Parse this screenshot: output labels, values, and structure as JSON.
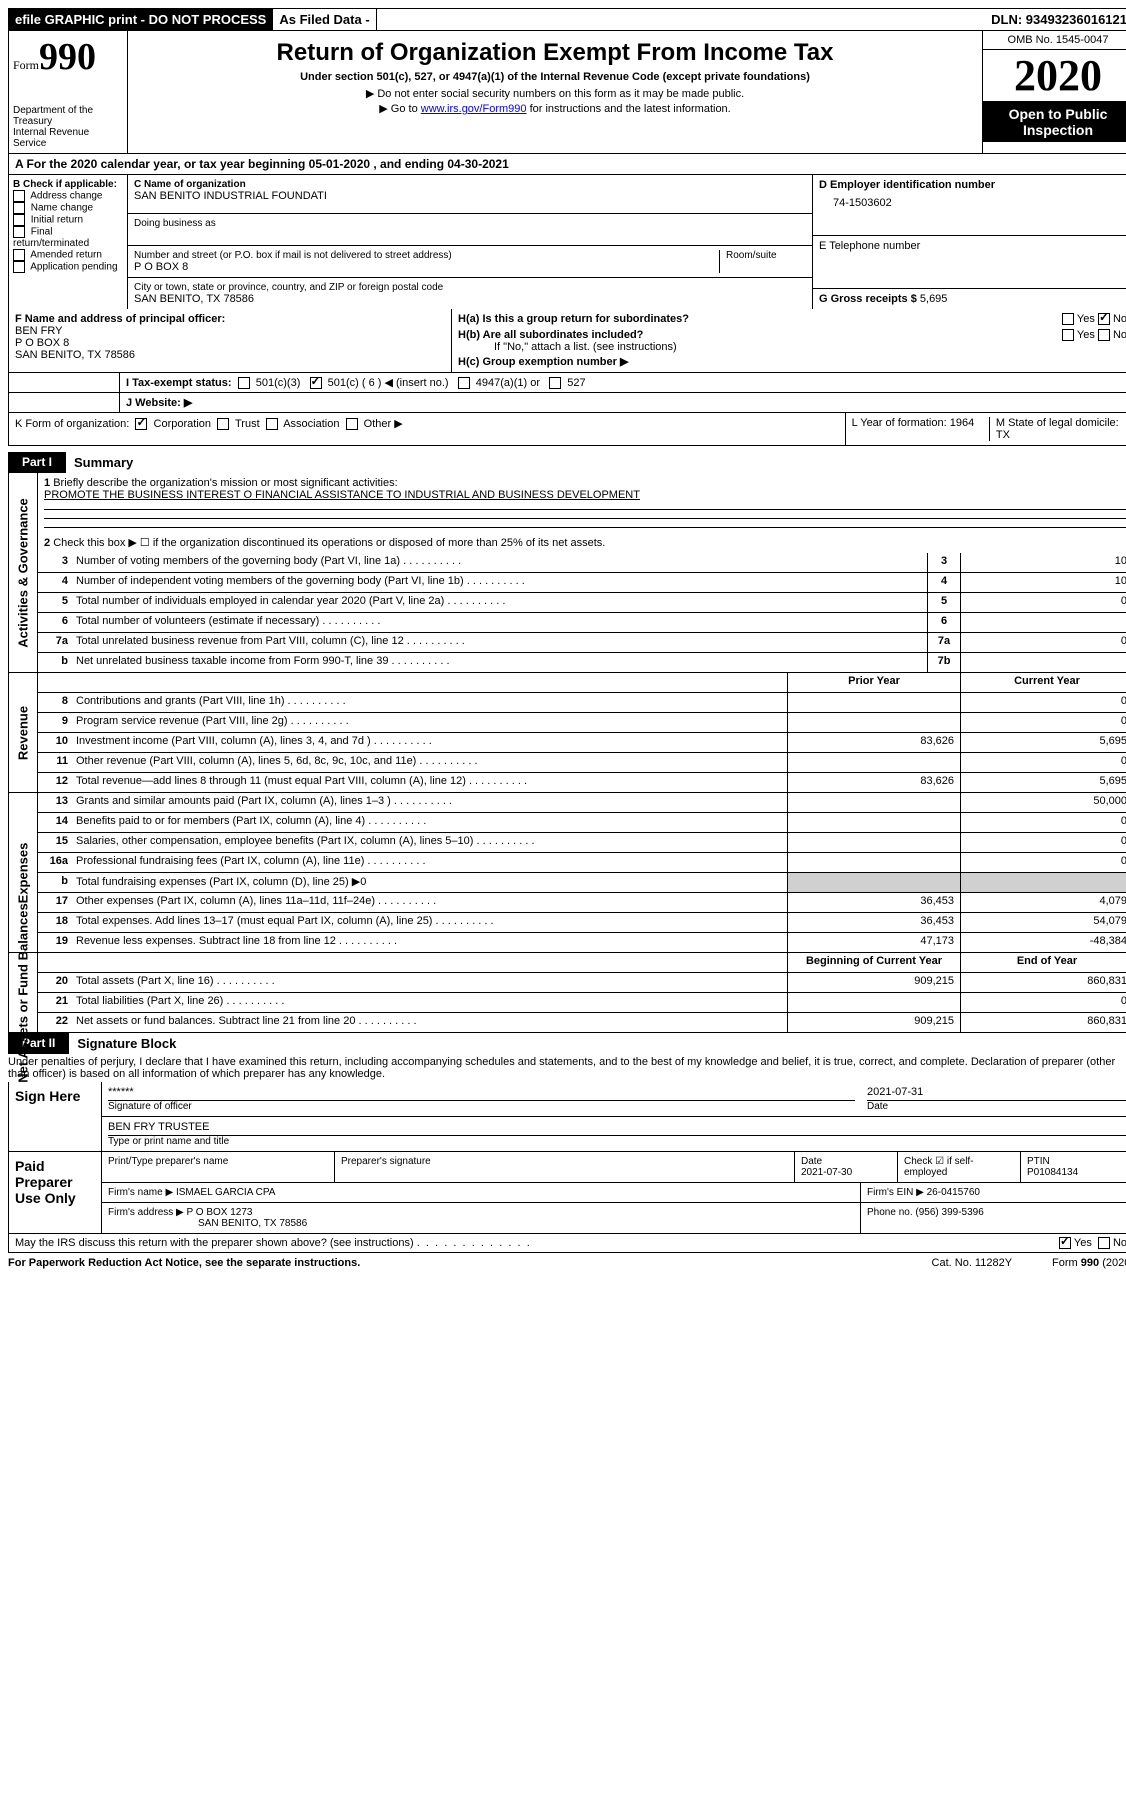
{
  "top_bar": {
    "efile": "efile GRAPHIC print - DO NOT PROCESS",
    "asfiled": "As Filed Data -",
    "dln": "DLN: 93493236016121"
  },
  "header": {
    "form_small": "Form",
    "form_big": "990",
    "dept": "Department of the Treasury\nInternal Revenue Service",
    "title": "Return of Organization Exempt From Income Tax",
    "sub": "Under section 501(c), 527, or 4947(a)(1) of the Internal Revenue Code (except private foundations)",
    "note1": "▶ Do not enter social security numbers on this form as it may be made public.",
    "note2_pre": "▶ Go to ",
    "note2_link": "www.irs.gov/Form990",
    "note2_post": " for instructions and the latest information.",
    "omb": "OMB No. 1545-0047",
    "year": "2020",
    "otp": "Open to Public Inspection"
  },
  "row_a": "A   For the 2020 calendar year, or tax year beginning 05-01-2020    , and ending 04-30-2021",
  "section_b": {
    "title": "B Check if applicable:",
    "items": [
      "Address change",
      "Name change",
      "Initial return",
      "Final return/terminated",
      "Amended return",
      "Application pending"
    ]
  },
  "section_c": {
    "name_lbl": "C Name of organization",
    "name": "SAN BENITO INDUSTRIAL FOUNDATI",
    "dba_lbl": "Doing business as",
    "addr_lbl": "Number and street (or P.O. box if mail is not delivered to street address)",
    "room_lbl": "Room/suite",
    "addr": "P O BOX 8",
    "city_lbl": "City or town, state or province, country, and ZIP or foreign postal code",
    "city": "SAN BENITO, TX  78586"
  },
  "section_d": {
    "ein_lbl": "D Employer identification number",
    "ein": "74-1503602",
    "phone_lbl": "E Telephone number",
    "gross_lbl": "G Gross receipts $",
    "gross": "5,695"
  },
  "section_f": {
    "lbl": "F   Name and address of principal officer:",
    "name": "BEN FRY",
    "addr1": "P O BOX 8",
    "addr2": "SAN BENITO, TX  78586"
  },
  "section_h": {
    "a": "H(a)  Is this a group return for subordinates?",
    "b": "H(b)  Are all subordinates included?",
    "b_note": "If \"No,\" attach a list. (see instructions)",
    "c": "H(c)  Group exemption number ▶"
  },
  "row_i": {
    "lbl": "I   Tax-exempt status:",
    "o1": "501(c)(3)",
    "o2": "501(c) ( 6 ) ◀ (insert no.)",
    "o3": "4947(a)(1) or",
    "o4": "527"
  },
  "row_j": "J   Website: ▶",
  "row_k": "K Form of organization:",
  "row_k_opts": [
    "Corporation",
    "Trust",
    "Association",
    "Other ▶"
  ],
  "row_l": "L Year of formation: 1964",
  "row_m": "M State of legal domicile: TX",
  "part1": {
    "tab": "Part I",
    "title": "Summary",
    "q1": "Briefly describe the organization's mission or most significant activities:",
    "q1v": "PROMOTE THE BUSINESS INTEREST O FINANCIAL ASSISTANCE TO INDUSTRIAL AND BUSINESS DEVELOPMENT",
    "q2": "Check this box ▶ ☐ if the organization discontinued its operations or disposed of more than 25% of its net assets.",
    "gov": [
      {
        "n": "3",
        "t": "Number of voting members of the governing body (Part VI, line 1a)",
        "k": "3",
        "v": "10"
      },
      {
        "n": "4",
        "t": "Number of independent voting members of the governing body (Part VI, line 1b)",
        "k": "4",
        "v": "10"
      },
      {
        "n": "5",
        "t": "Total number of individuals employed in calendar year 2020 (Part V, line 2a)",
        "k": "5",
        "v": "0"
      },
      {
        "n": "6",
        "t": "Total number of volunteers (estimate if necessary)",
        "k": "6",
        "v": ""
      },
      {
        "n": "7a",
        "t": "Total unrelated business revenue from Part VIII, column (C), line 12",
        "k": "7a",
        "v": "0"
      },
      {
        "n": "b",
        "t": "Net unrelated business taxable income from Form 990-T, line 39",
        "k": "7b",
        "v": ""
      }
    ],
    "hdr_prior": "Prior Year",
    "hdr_curr": "Current Year",
    "rev": [
      {
        "n": "8",
        "t": "Contributions and grants (Part VIII, line 1h)",
        "p": "",
        "c": "0"
      },
      {
        "n": "9",
        "t": "Program service revenue (Part VIII, line 2g)",
        "p": "",
        "c": "0"
      },
      {
        "n": "10",
        "t": "Investment income (Part VIII, column (A), lines 3, 4, and 7d )",
        "p": "83,626",
        "c": "5,695"
      },
      {
        "n": "11",
        "t": "Other revenue (Part VIII, column (A), lines 5, 6d, 8c, 9c, 10c, and 11e)",
        "p": "",
        "c": "0"
      },
      {
        "n": "12",
        "t": "Total revenue—add lines 8 through 11 (must equal Part VIII, column (A), line 12)",
        "p": "83,626",
        "c": "5,695"
      }
    ],
    "exp": [
      {
        "n": "13",
        "t": "Grants and similar amounts paid (Part IX, column (A), lines 1–3 )",
        "p": "",
        "c": "50,000"
      },
      {
        "n": "14",
        "t": "Benefits paid to or for members (Part IX, column (A), line 4)",
        "p": "",
        "c": "0"
      },
      {
        "n": "15",
        "t": "Salaries, other compensation, employee benefits (Part IX, column (A), lines 5–10)",
        "p": "",
        "c": "0"
      },
      {
        "n": "16a",
        "t": "Professional fundraising fees (Part IX, column (A), line 11e)",
        "p": "",
        "c": "0"
      },
      {
        "n": "b",
        "t": "Total fundraising expenses (Part IX, column (D), line 25) ▶0",
        "p": "gray",
        "c": "gray"
      },
      {
        "n": "17",
        "t": "Other expenses (Part IX, column (A), lines 11a–11d, 11f–24e)",
        "p": "36,453",
        "c": "4,079"
      },
      {
        "n": "18",
        "t": "Total expenses. Add lines 13–17 (must equal Part IX, column (A), line 25)",
        "p": "36,453",
        "c": "54,079"
      },
      {
        "n": "19",
        "t": "Revenue less expenses. Subtract line 18 from line 12",
        "p": "47,173",
        "c": "-48,384"
      }
    ],
    "hdr_beg": "Beginning of Current Year",
    "hdr_end": "End of Year",
    "na": [
      {
        "n": "20",
        "t": "Total assets (Part X, line 16)",
        "p": "909,215",
        "c": "860,831"
      },
      {
        "n": "21",
        "t": "Total liabilities (Part X, line 26)",
        "p": "",
        "c": "0"
      },
      {
        "n": "22",
        "t": "Net assets or fund balances. Subtract line 21 from line 20",
        "p": "909,215",
        "c": "860,831"
      }
    ],
    "side_gov": "Activities & Governance",
    "side_rev": "Revenue",
    "side_exp": "Expenses",
    "side_na": "Net Assets or Fund Balances"
  },
  "part2": {
    "tab": "Part II",
    "title": "Signature Block",
    "perjury": "Under penalties of perjury, I declare that I have examined this return, including accompanying schedules and statements, and to the best of my knowledge and belief, it is true, correct, and complete. Declaration of preparer (other than officer) is based on all information of which preparer has any knowledge.",
    "sign_here": "Sign Here",
    "stars": "******",
    "sig_of_officer": "Signature of officer",
    "sig_date": "2021-07-31",
    "date_lbl": "Date",
    "officer_name": "BEN FRY TRUSTEE",
    "officer_title_lbl": "Type or print name and title",
    "paid": "Paid Preparer Use Only",
    "prep_name_lbl": "Print/Type preparer's name",
    "prep_sig_lbl": "Preparer's signature",
    "prep_date_lbl": "Date",
    "prep_date": "2021-07-30",
    "prep_check": "Check ☑ if self-employed",
    "ptin_lbl": "PTIN",
    "ptin": "P01084134",
    "firm_name_lbl": "Firm's name    ▶",
    "firm_name": "ISMAEL GARCIA CPA",
    "firm_ein_lbl": "Firm's EIN ▶",
    "firm_ein": "26-0415760",
    "firm_addr_lbl": "Firm's address ▶",
    "firm_addr1": "P O BOX 1273",
    "firm_addr2": "SAN BENITO, TX  78586",
    "phone_lbl": "Phone no.",
    "phone": "(956) 399-5396",
    "discuss": "May the IRS discuss this return with the preparer shown above? (see instructions)"
  },
  "footer": {
    "l": "For Paperwork Reduction Act Notice, see the separate instructions.",
    "m": "Cat. No. 11282Y",
    "r": "Form 990 (2020)"
  }
}
